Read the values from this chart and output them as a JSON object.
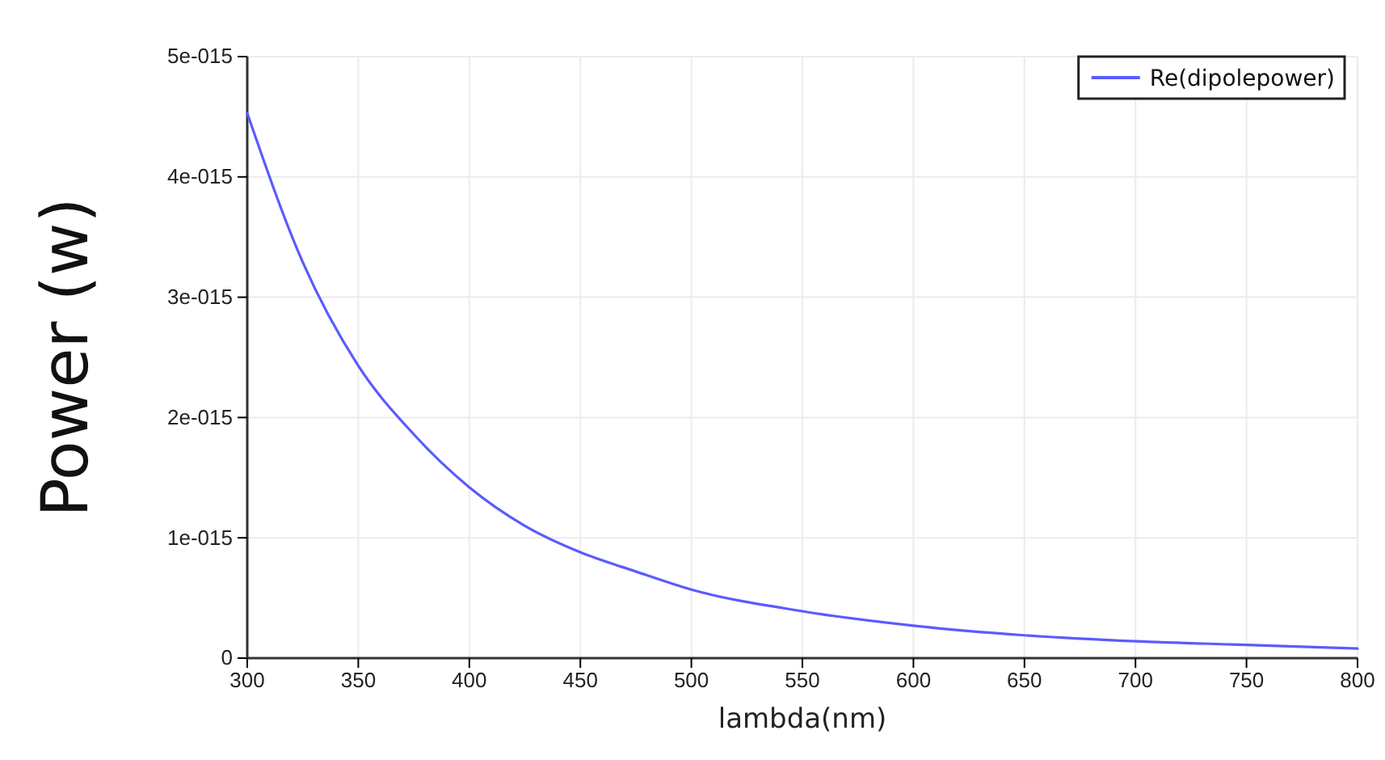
{
  "chart_data": {
    "type": "line",
    "xlabel": "lambda(nm)",
    "ylabel": "Power (w)",
    "x": [
      300,
      325,
      350,
      375,
      400,
      425,
      450,
      475,
      500,
      550,
      600,
      650,
      700,
      750,
      800
    ],
    "series": [
      {
        "name": "Re(dipolepower)",
        "color": "#5b5bff",
        "values": [
          4.53e-15,
          3.29e-15,
          2.43e-15,
          1.86e-15,
          1.42e-15,
          1.1e-15,
          8.8e-16,
          7.2e-16,
          5.7e-16,
          3.9e-16,
          2.7e-16,
          1.9e-16,
          1.4e-16,
          1.1e-16,
          8e-17
        ]
      }
    ],
    "xlim": [
      300,
      800
    ],
    "xticks": [
      300,
      350,
      400,
      450,
      500,
      550,
      600,
      650,
      700,
      750,
      800
    ],
    "ylim": [
      0,
      5e-15
    ],
    "yticks": [
      {
        "value": 0,
        "label": "0"
      },
      {
        "value": 1e-15,
        "label": "1e-015"
      },
      {
        "value": 2e-15,
        "label": "2e-015"
      },
      {
        "value": 3e-15,
        "label": "3e-015"
      },
      {
        "value": 4e-15,
        "label": "4e-015"
      },
      {
        "value": 5e-15,
        "label": "5e-015"
      }
    ],
    "grid": true,
    "legend": "top right",
    "line_style": "solid",
    "marker": "none"
  }
}
